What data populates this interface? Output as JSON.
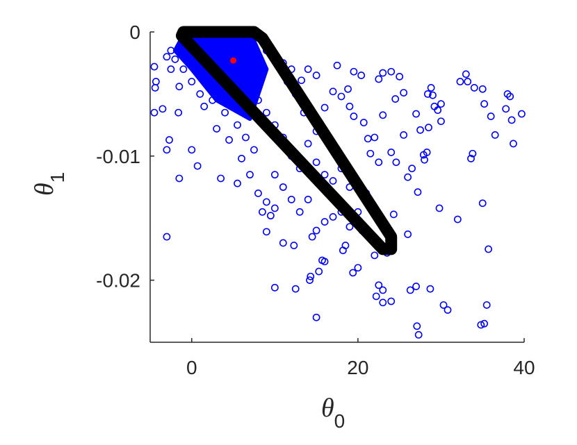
{
  "chart_data": {
    "type": "scatter",
    "x_label": {
      "symbol": "θ",
      "subscript": "0"
    },
    "y_label": {
      "symbol": "θ",
      "subscript": "1"
    },
    "xlim": [
      -5,
      40
    ],
    "xticks": [
      0,
      20,
      40
    ],
    "ylim": [
      -0.025,
      0
    ],
    "yticks": [
      -0.02,
      -0.01,
      0
    ],
    "series": [
      {
        "color": "#0000ff",
        "x": [
          38,
          38.3,
          39.7,
          38.7,
          37.8,
          38.5,
          36,
          35,
          35.2,
          33,
          33.2,
          34,
          32.3,
          33.8,
          33.6,
          36.5,
          35.7,
          35,
          32,
          29.8,
          34.8,
          35.2,
          35.5,
          30.3,
          30.8,
          28.7,
          27,
          26.3,
          27.1,
          27.3,
          24,
          23,
          22.5,
          23,
          22.2,
          19.4,
          20,
          15,
          12.5,
          10,
          14.2,
          15.7,
          16,
          15.3,
          14.3,
          18.5,
          18.2,
          22,
          23.5,
          24.3,
          26,
          27.2,
          26.5,
          26,
          28,
          27.9,
          28.3,
          30,
          27.5,
          28.5,
          29,
          27,
          29.6,
          30,
          29.2,
          28.4,
          28.8,
          25.5,
          24.5,
          25.5,
          24,
          24.6,
          22.5,
          21.5,
          22,
          21.2,
          20.7,
          19.5,
          19,
          23,
          22.5,
          23,
          24,
          25,
          20.4,
          19.5,
          18.8,
          17.5,
          13.2,
          15,
          17,
          18,
          16,
          14.8,
          12.5,
          11.5,
          10,
          9,
          11,
          12,
          14,
          -4.5,
          -4.5,
          -4.4,
          -4.3,
          -3,
          -3.5,
          -3,
          -2.7,
          -1.5,
          -1.6,
          -3,
          -2.5,
          -2.5,
          -2,
          -1.5,
          0.7,
          0,
          1.5,
          3,
          3.5,
          5.5,
          4.5,
          6,
          7,
          8,
          9,
          8.5,
          9.5,
          10,
          9,
          11,
          12.3,
          14.5,
          15,
          16,
          17,
          18,
          19,
          20,
          21,
          20.5,
          12,
          13,
          14,
          11,
          10,
          7.5,
          6.5,
          5.5,
          4,
          2.5,
          1,
          0,
          -1,
          2,
          12,
          13,
          14,
          15,
          16,
          17,
          18,
          19,
          17.5,
          11,
          10,
          9,
          8,
          7,
          15,
          16.5,
          13.5
        ],
        "y": [
          -0.005,
          -0.0052,
          -0.0066,
          -0.009,
          -0.0062,
          -0.0071,
          -0.0068,
          -0.0046,
          -0.0058,
          -0.0034,
          -0.004,
          -0.0045,
          -0.004,
          -0.0098,
          -0.0102,
          -0.0083,
          -0.0175,
          -0.0138,
          -0.0151,
          -0.0142,
          -0.0236,
          -0.0235,
          -0.022,
          -0.022,
          -0.0224,
          -0.0207,
          -0.0205,
          -0.0208,
          -0.0237,
          -0.0244,
          -0.0217,
          -0.0218,
          -0.0204,
          -0.0208,
          -0.0213,
          -0.0194,
          -0.019,
          -0.023,
          -0.0207,
          -0.0206,
          -0.02,
          -0.0184,
          -0.0185,
          -0.0193,
          -0.0197,
          -0.0172,
          -0.0176,
          -0.018,
          -0.0178,
          -0.0147,
          -0.0163,
          -0.0129,
          -0.011,
          -0.0117,
          -0.0103,
          -0.0099,
          -0.0097,
          -0.0072,
          -0.0079,
          -0.0077,
          -0.0051,
          -0.0066,
          -0.0063,
          -0.0058,
          -0.006,
          -0.005,
          -0.0045,
          -0.0049,
          -0.0054,
          -0.0083,
          -0.0097,
          -0.0105,
          -0.0105,
          -0.0098,
          -0.0085,
          -0.0086,
          -0.0073,
          -0.0068,
          -0.006,
          -0.0067,
          -0.0038,
          -0.0033,
          -0.0032,
          -0.0036,
          -0.0035,
          -0.0032,
          -0.0046,
          -0.0027,
          -0.0039,
          -0.0035,
          -0.0048,
          -0.0052,
          -0.0061,
          -0.007,
          -0.005,
          -0.004,
          -0.002,
          -0.0015,
          -0.0025,
          -0.003,
          -0.003,
          -0.0028,
          -0.0065,
          -0.0045,
          -0.004,
          -0.0165,
          -0.0062,
          -0.0095,
          -0.0087,
          -0.0118,
          -0.0065,
          -0.002,
          -0.0015,
          -0.003,
          -0.0022,
          -0.0044,
          -0.0108,
          -0.0095,
          -0.006,
          -0.0078,
          -0.0118,
          -0.0122,
          -0.0087,
          -0.0102,
          -0.0115,
          -0.013,
          -0.0137,
          -0.0145,
          -0.0148,
          -0.0142,
          -0.0161,
          -0.017,
          -0.0172,
          -0.0165,
          -0.016,
          -0.0153,
          -0.0149,
          -0.0145,
          -0.0157,
          -0.0145,
          -0.013,
          -0.016,
          -0.0135,
          -0.0145,
          -0.0135,
          -0.0125,
          -0.0115,
          -0.0095,
          -0.0085,
          -0.0075,
          -0.0065,
          -0.0055,
          -0.005,
          -0.004,
          -0.003,
          -0.0035,
          -0.01,
          -0.011,
          -0.009,
          -0.0105,
          -0.0115,
          -0.012,
          -0.011,
          -0.0125,
          -0.0135,
          -0.0085,
          -0.0075,
          -0.0065,
          -0.0055,
          -0.0045,
          -0.008,
          -0.009,
          -0.0065
        ]
      }
    ],
    "dense_region": {
      "color": "#0000ff",
      "x": [
        -1.2,
        -0.5,
        7,
        9,
        7,
        3,
        0,
        -2
      ],
      "y": [
        -0.0005,
        0,
        0,
        -0.003,
        -0.007,
        -0.0055,
        -0.003,
        -0.0015
      ]
    },
    "hull": {
      "color": "#000000",
      "x": [
        -1,
        7.5,
        8.5,
        24,
        24,
        23,
        -1.2
      ],
      "y": [
        0,
        0,
        -0.0005,
        -0.0165,
        -0.0175,
        -0.0175,
        -0.0003
      ]
    },
    "point": {
      "color": "#ff0000",
      "x": 5,
      "y": -0.0023
    }
  }
}
